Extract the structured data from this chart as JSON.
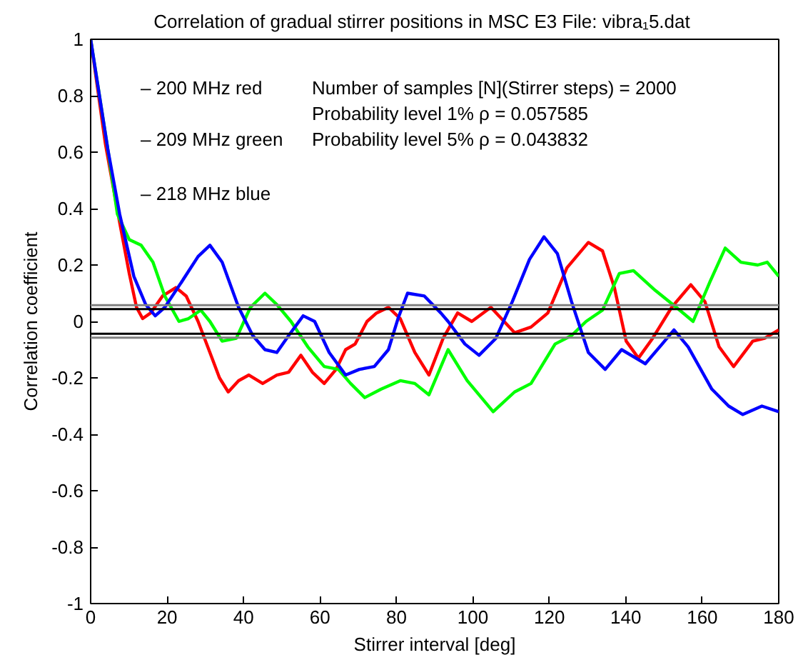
{
  "chart_data": {
    "type": "line",
    "title": "Correlation of gradual stirrer positions in MSC E3      File: vibra₁5.dat",
    "xlabel": "Stirrer interval [deg]",
    "ylabel": "Correlation coefficient",
    "xlim": [
      0,
      180
    ],
    "xticks": [
      0,
      20,
      40,
      60,
      80,
      100,
      120,
      140,
      160,
      180
    ],
    "ylim": [
      -1,
      1
    ],
    "yticks": [
      -1,
      -0.8,
      -0.6,
      -0.4,
      -0.2,
      0,
      0.2,
      0.4,
      0.6,
      0.8,
      1
    ],
    "grid": false,
    "line_style": "solid",
    "marker": "none",
    "annotations": [
      "– 200 MHz red",
      "– 209 MHz green",
      "– 218 MHz blue",
      "Number of samples [N](Stirrer steps) =  2000",
      "Probability level 1% ρ =  0.057585",
      "Probability level 5% ρ =  0.043832"
    ],
    "ref_lines": [
      {
        "axis": "y",
        "value": 0.057585,
        "label": null,
        "color": "#808080"
      },
      {
        "axis": "y",
        "value": -0.057585,
        "label": null,
        "color": "#808080"
      },
      {
        "axis": "y",
        "value": 0.043832,
        "label": null,
        "color": "#000000"
      },
      {
        "axis": "y",
        "value": -0.043832,
        "label": null,
        "color": "#000000"
      }
    ],
    "series": [
      {
        "color": "#ff0000",
        "x": [
          0,
          3.85,
          7.6,
          10.1,
          12,
          13.6,
          15.7,
          18.8,
          22.3,
          25,
          28.1,
          31.2,
          33.7,
          36,
          38.7,
          41.4,
          45,
          48.7,
          51.8,
          55,
          58,
          61.1,
          64.2,
          66.7,
          69.2,
          72.3,
          74.8,
          77.9,
          81,
          84.8,
          88.5,
          92.2,
          96,
          99.7,
          104.7,
          110.9,
          115.2,
          119.6,
          124.6,
          130.2,
          133.9,
          137,
          140.1,
          143.3,
          147,
          152,
          157,
          160.7,
          164.4,
          168.2,
          173.2,
          176.3,
          180
        ],
        "values": [
          1,
          0.63,
          0.35,
          0.17,
          0.05,
          0.01,
          0.03,
          0.09,
          0.12,
          0.09,
          0,
          -0.11,
          -0.2,
          -0.25,
          -0.21,
          -0.19,
          -0.22,
          -0.19,
          -0.18,
          -0.12,
          -0.18,
          -0.22,
          -0.17,
          -0.1,
          -0.08,
          0,
          0.03,
          0.05,
          0.01,
          -0.11,
          -0.19,
          -0.06,
          0.03,
          0,
          0.05,
          -0.04,
          -0.02,
          0.03,
          0.19,
          0.28,
          0.25,
          0.12,
          -0.07,
          -0.13,
          -0.06,
          0.05,
          0.13,
          0.07,
          -0.09,
          -0.16,
          -0.07,
          -0.06,
          -0.03
        ]
      },
      {
        "color": "#00ff00",
        "x": [
          0,
          4.5,
          7,
          10.1,
          13.2,
          16.3,
          19.4,
          23.1,
          25.6,
          28.8,
          31.2,
          34.4,
          38.1,
          41.8,
          45.6,
          48.7,
          52.4,
          56.8,
          61.1,
          64.8,
          68,
          71.7,
          76,
          81,
          84.8,
          88.5,
          93.5,
          98.5,
          105.3,
          110.9,
          115.2,
          121.5,
          125.8,
          129.6,
          133.9,
          138.3,
          142,
          147.7,
          153.2,
          157.6,
          162,
          166,
          170.1,
          174.5,
          177,
          180
        ],
        "values": [
          1,
          0.61,
          0.38,
          0.29,
          0.27,
          0.21,
          0.09,
          0,
          0.01,
          0.04,
          0,
          -0.07,
          -0.06,
          0.05,
          0.1,
          0.06,
          0,
          -0.09,
          -0.16,
          -0.17,
          -0.22,
          -0.27,
          -0.24,
          -0.21,
          -0.22,
          -0.26,
          -0.1,
          -0.21,
          -0.32,
          -0.25,
          -0.22,
          -0.08,
          -0.05,
          0,
          0.04,
          0.17,
          0.18,
          0.11,
          0.05,
          0,
          0.14,
          0.26,
          0.21,
          0.2,
          0.21,
          0.16
        ]
      },
      {
        "color": "#0000ff",
        "x": [
          0,
          4.5,
          7.6,
          11.3,
          14.4,
          16.9,
          19.4,
          23.8,
          28.1,
          31.2,
          34.4,
          38.7,
          42.4,
          45.6,
          48.7,
          51.8,
          55.6,
          58.6,
          62.4,
          66.7,
          70.3,
          74.2,
          77.9,
          80.4,
          82.9,
          87.3,
          91.6,
          93.5,
          97.9,
          101.6,
          106,
          110.3,
          114.8,
          118.6,
          122.1,
          125.8,
          130.2,
          134.6,
          138.9,
          145.1,
          149.5,
          152.6,
          156.3,
          162.5,
          166.9,
          170.6,
          175.6,
          180
        ],
        "values": [
          1,
          0.61,
          0.38,
          0.16,
          0.06,
          0.02,
          0.05,
          0.14,
          0.23,
          0.27,
          0.21,
          0.05,
          -0.05,
          -0.1,
          -0.11,
          -0.05,
          0.02,
          0,
          -0.11,
          -0.19,
          -0.17,
          -0.16,
          -0.1,
          0.01,
          0.1,
          0.09,
          0.03,
          0,
          -0.08,
          -0.12,
          -0.06,
          0.07,
          0.22,
          0.3,
          0.24,
          0.07,
          -0.11,
          -0.17,
          -0.1,
          -0.15,
          -0.08,
          -0.03,
          -0.09,
          -0.24,
          -0.3,
          -0.33,
          -0.3,
          -0.32
        ]
      }
    ]
  }
}
